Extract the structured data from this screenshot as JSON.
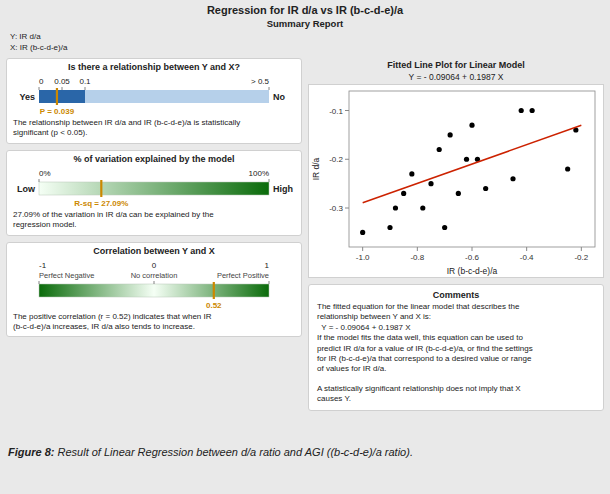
{
  "title": "Regression for IR d/a vs IR (b-c-d-e)/a",
  "subtitle": "Summary Report",
  "annotations": [
    "Y: IR d/a",
    "X: IR (b-c-d-e)/a"
  ],
  "comments": {
    "title": "Comments",
    "text": [
      "The fitted equation for the linear model that describes the\nrelationship between Y and X is:",
      "  Y = - 0.09064 + 0.1987 X",
      "If the model fits the data well, this equation can be used to\npredict IR d/a for a value of IR (b-c-d-e)/a, or find the settings\nfor IR (b-c-d-e)/a that correspond to a desired value or range\nof values for IR d/a.",
      "A statistically significant relationship does not imply that X\ncauses Y."
    ]
  },
  "caption": {
    "label": "Figure 8:",
    "text": " Result of Linear Regression between d/a ratio and AGI ((b-c-d-e)/a ratio)."
  },
  "chart_data": [
    {
      "type": "gauge",
      "title": "Is there a relationship between Y and X?",
      "xlim": [
        0,
        0.5
      ],
      "xticks": [
        0,
        0.05,
        0.1,
        {
          "value": 0.5,
          "label": "> 0.5"
        }
      ],
      "band": [
        0,
        0.1
      ],
      "end_labels": [
        "Yes",
        "No"
      ],
      "values": [
        0.039
      ],
      "value_labels": [
        "P = 0.039"
      ],
      "color": "#cc8800",
      "description": "The relationship between IR d/a and IR (b-c-d-e)/a is statistically\nsignificant (p < 0.05)."
    },
    {
      "type": "gauge",
      "title": "% of variation explained by the model",
      "xlim": [
        0,
        100
      ],
      "xticks": [
        {
          "value": 0,
          "label": "0%"
        },
        {
          "value": 100,
          "label": "100%"
        }
      ],
      "end_labels": [
        "Low",
        "High"
      ],
      "values": [
        27.09
      ],
      "value_labels": [
        "R-sq = 27.09%"
      ],
      "color": "#cc8800",
      "description": "27.09% of the variation in IR d/a can be explained by the\nregression model."
    },
    {
      "type": "gauge",
      "title": "Correlation between Y and X",
      "xlim": [
        -1,
        1
      ],
      "xticks": [
        -1,
        0,
        1
      ],
      "tick_sublabels": [
        "Perfect Negative",
        "No correlation",
        "Perfect Positive"
      ],
      "values": [
        0.52
      ],
      "color": "#cc8800",
      "description": "The positive correlation (r = 0.52) indicates that when IR\n(b-c-d-e)/a increases, IR d/a also tends to increase."
    },
    {
      "type": "scatter",
      "title": "Fitted Line Plot for Linear Model",
      "subtitle": "Y = - 0.09064 + 0.1987 X",
      "x_label": "IR (b-c-d-e)/a",
      "y_label": "IR d/a",
      "xlim": [
        -1.05,
        -0.15
      ],
      "ylim": [
        -0.38,
        -0.06
      ],
      "xticks": [
        {
          "value": -1.0,
          "label": "-1.0"
        },
        -0.8,
        -0.6,
        -0.4,
        -0.2
      ],
      "yticks": [
        -0.3,
        -0.2,
        -0.1
      ],
      "grid": false,
      "series": [
        {
          "type": "scatter",
          "marker": "circle",
          "color": "#000000",
          "x": [
            -1.0,
            -0.9,
            -0.88,
            -0.85,
            -0.82,
            -0.78,
            -0.75,
            -0.72,
            -0.7,
            -0.68,
            -0.65,
            -0.62,
            -0.6,
            -0.58,
            -0.55,
            -0.45,
            -0.42,
            -0.38,
            -0.25,
            -0.22
          ],
          "values": [
            -0.35,
            -0.34,
            -0.3,
            -0.27,
            -0.23,
            -0.3,
            -0.25,
            -0.18,
            -0.34,
            -0.15,
            -0.27,
            -0.2,
            -0.13,
            -0.2,
            -0.26,
            -0.24,
            -0.1,
            -0.1,
            -0.22,
            -0.14
          ]
        },
        {
          "type": "line",
          "color": "#cc2200",
          "x": [
            -1.0,
            -0.2
          ],
          "values": [
            -0.28934,
            -0.13038
          ]
        }
      ]
    }
  ]
}
